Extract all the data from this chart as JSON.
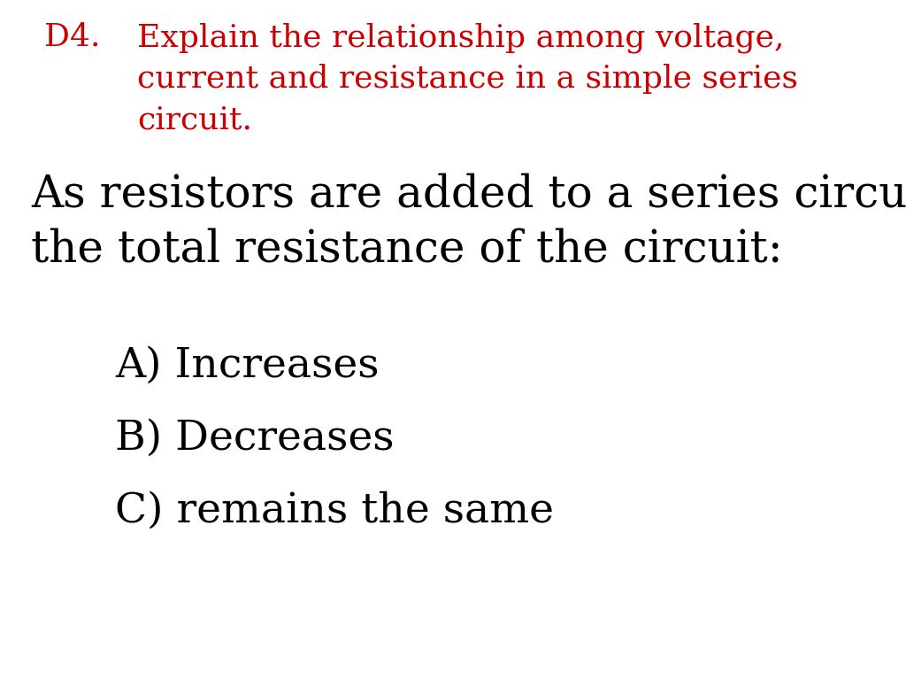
{
  "background_color": "#ffffff",
  "heading_label": "D4.",
  "heading_text_line1": "Explain the relationship among voltage,",
  "heading_text_line2": "current and resistance in a simple series",
  "heading_text_line3": "circuit.",
  "heading_color": "#cc0000",
  "heading_fontsize": 26,
  "heading_font": "serif",
  "body_text_line1": "As resistors are added to a series circuit,",
  "body_text_line2": "the total resistance of the circuit:",
  "body_color": "#000000",
  "body_fontsize": 36,
  "body_font": "serif",
  "options": [
    "A) Increases",
    "B) Decreases",
    "C) remains the same"
  ],
  "options_color": "#000000",
  "options_fontsize": 34,
  "options_font": "serif"
}
